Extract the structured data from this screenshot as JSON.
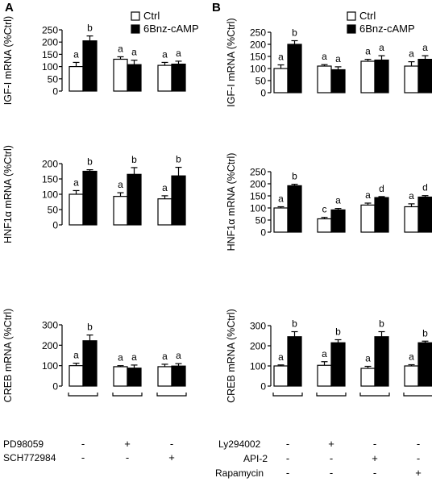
{
  "panels": [
    {
      "id": "A",
      "label": "A"
    },
    {
      "id": "B",
      "label": "B"
    }
  ],
  "legend": {
    "ctrl": "Ctrl",
    "treat": "6Bnz-cAMP"
  },
  "colors": {
    "ctrl": "#ffffff",
    "treat": "#000000",
    "stroke": "#000000"
  },
  "treatment_table": {
    "A": [
      {
        "label": "PD98059",
        "marks": [
          "-",
          "+",
          "-"
        ]
      },
      {
        "label": "SCH772984",
        "marks": [
          "-",
          "-",
          "+"
        ]
      }
    ],
    "B": [
      {
        "label": "Ly294002",
        "marks": [
          "-",
          "+",
          "-",
          "-"
        ]
      },
      {
        "label": "API-2",
        "marks": [
          "-",
          "-",
          "+",
          "-"
        ]
      },
      {
        "label": "Rapamycin",
        "marks": [
          "-",
          "-",
          "-",
          "+"
        ]
      }
    ]
  },
  "chart_data": [
    {
      "type": "bar",
      "panel": "A",
      "ylabel": "IGF-I mRNA (%Ctrl)",
      "ylim": [
        0,
        250
      ],
      "yticks": [
        0,
        50,
        100,
        150,
        200,
        250
      ],
      "series": [
        {
          "name": "Ctrl",
          "values": [
            100,
            130,
            105
          ],
          "errors": [
            17,
            10,
            12
          ],
          "letters": [
            "a",
            "a",
            "a"
          ]
        },
        {
          "name": "6Bnz-cAMP",
          "values": [
            205,
            108,
            110
          ],
          "errors": [
            20,
            18,
            12
          ],
          "letters": [
            "b",
            "a",
            "a"
          ]
        }
      ]
    },
    {
      "type": "bar",
      "panel": "A",
      "ylabel": "HNF1α mRNA (%Ctrl)",
      "ylim": [
        0,
        200
      ],
      "yticks": [
        0,
        50,
        100,
        150,
        200
      ],
      "series": [
        {
          "name": "Ctrl",
          "values": [
            100,
            93,
            85
          ],
          "errors": [
            12,
            12,
            10
          ],
          "letters": [
            "a",
            "a",
            "a"
          ]
        },
        {
          "name": "6Bnz-cAMP",
          "values": [
            175,
            165,
            160
          ],
          "errors": [
            5,
            22,
            28
          ],
          "letters": [
            "b",
            "b",
            "b"
          ]
        }
      ]
    },
    {
      "type": "bar",
      "panel": "A",
      "ylabel": "CREB mRNA (%Ctrl)",
      "ylim": [
        0,
        300
      ],
      "yticks": [
        0,
        100,
        200,
        300
      ],
      "series": [
        {
          "name": "Ctrl",
          "values": [
            100,
            95,
            95
          ],
          "errors": [
            12,
            5,
            12
          ],
          "letters": [
            "a",
            "a",
            "a"
          ]
        },
        {
          "name": "6Bnz-cAMP",
          "values": [
            222,
            88,
            98
          ],
          "errors": [
            28,
            15,
            12
          ],
          "letters": [
            "b",
            "a",
            "a"
          ]
        }
      ]
    },
    {
      "type": "bar",
      "panel": "B",
      "ylabel": "IGF-I mRNA (%Ctrl)",
      "ylim": [
        0,
        250
      ],
      "yticks": [
        0,
        50,
        100,
        150,
        200,
        250
      ],
      "series": [
        {
          "name": "Ctrl",
          "values": [
            100,
            110,
            130,
            110
          ],
          "errors": [
            15,
            6,
            8,
            18
          ],
          "letters": [
            "a",
            "a",
            "a",
            "a"
          ]
        },
        {
          "name": "6Bnz-cAMP",
          "values": [
            200,
            95,
            135,
            138
          ],
          "errors": [
            15,
            12,
            18,
            15
          ],
          "letters": [
            "b",
            "a",
            "a",
            "a"
          ]
        }
      ]
    },
    {
      "type": "bar",
      "panel": "B",
      "ylabel": "HNF1α mRNA (%Ctrl)",
      "ylim": [
        0,
        250
      ],
      "yticks": [
        0,
        50,
        100,
        150,
        200,
        250
      ],
      "series": [
        {
          "name": "Ctrl",
          "values": [
            100,
            55,
            112,
            105
          ],
          "errors": [
            5,
            6,
            8,
            12
          ],
          "letters": [
            "a",
            "c",
            "a",
            "a"
          ]
        },
        {
          "name": "6Bnz-cAMP",
          "values": [
            192,
            92,
            143,
            145
          ],
          "errors": [
            6,
            6,
            4,
            6
          ],
          "letters": [
            "b",
            "a",
            "d",
            "d"
          ]
        }
      ]
    },
    {
      "type": "bar",
      "panel": "B",
      "ylabel": "CREB mRNA (%Ctrl)",
      "ylim": [
        0,
        300
      ],
      "yticks": [
        0,
        100,
        200,
        300
      ],
      "series": [
        {
          "name": "Ctrl",
          "values": [
            100,
            103,
            88,
            100
          ],
          "errors": [
            5,
            18,
            10,
            6
          ],
          "letters": [
            "a",
            "a",
            "a",
            "a"
          ]
        },
        {
          "name": "6Bnz-cAMP",
          "values": [
            245,
            215,
            245,
            215
          ],
          "errors": [
            25,
            15,
            25,
            8
          ],
          "letters": [
            "b",
            "b",
            "b",
            "b"
          ]
        }
      ]
    }
  ]
}
